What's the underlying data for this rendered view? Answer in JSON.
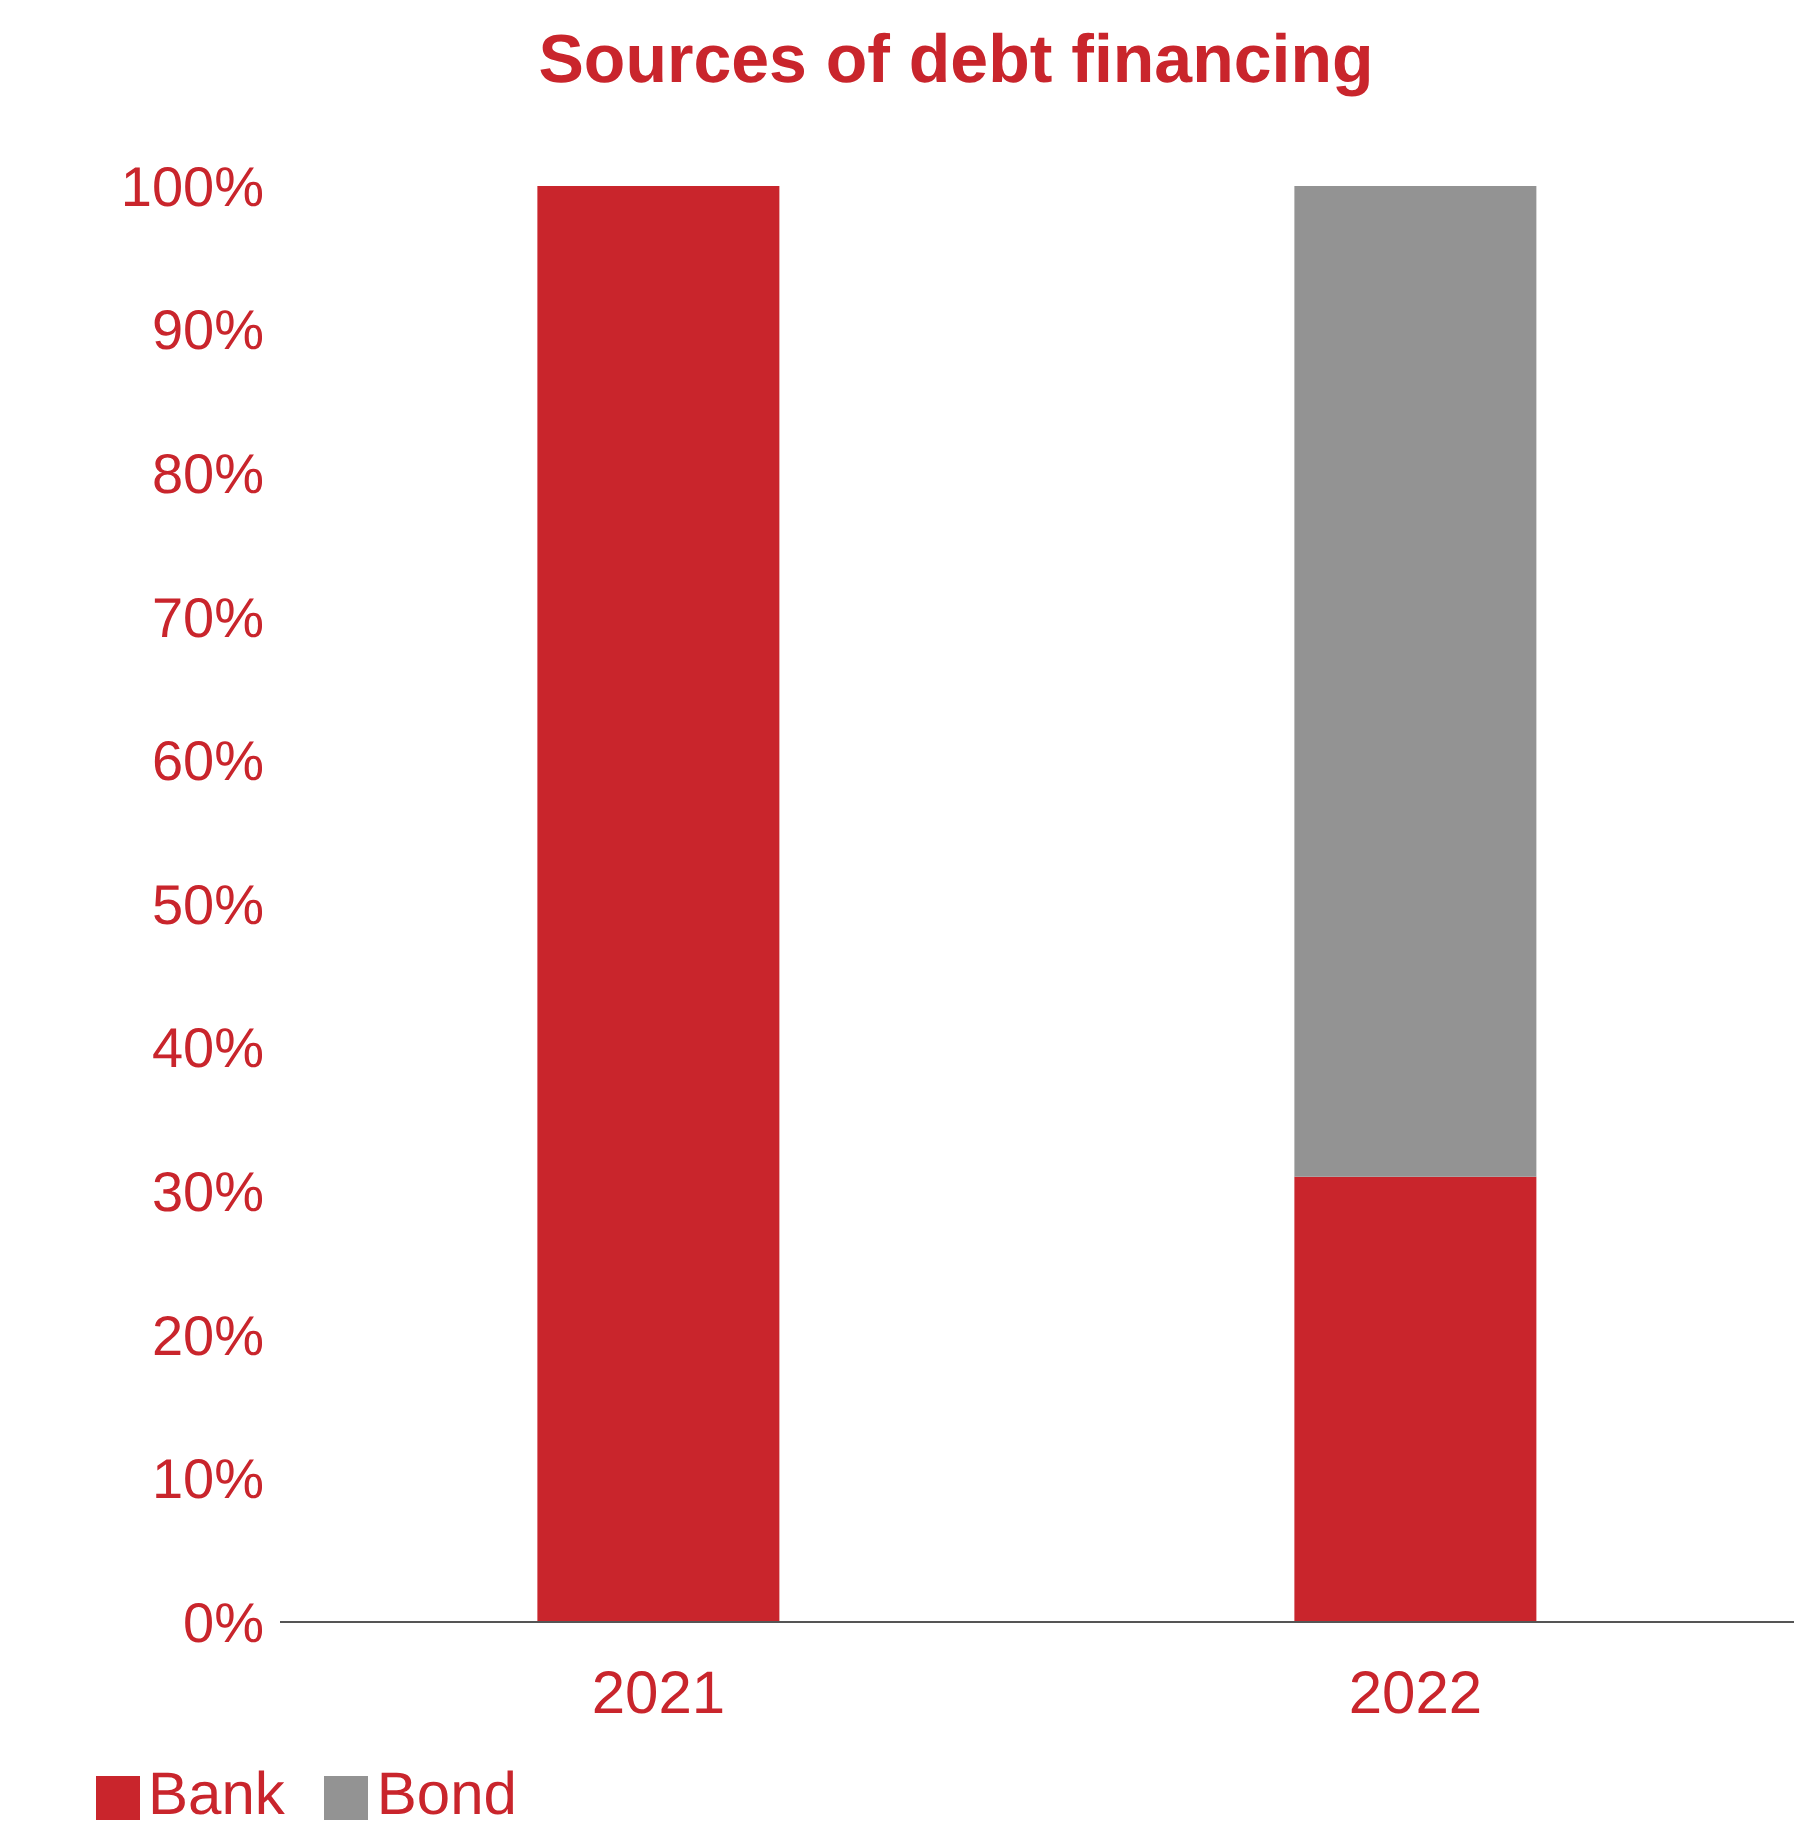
{
  "chart_data": {
    "type": "bar",
    "title": "Sources of debt financing",
    "categories": [
      "2021",
      "2022"
    ],
    "stacked": true,
    "series": [
      {
        "name": "Bank",
        "color": "#c9252c",
        "values": [
          100,
          31
        ]
      },
      {
        "name": "Bond",
        "color": "#939393",
        "values": [
          0,
          69
        ]
      }
    ],
    "ylim": [
      0,
      100
    ],
    "yticks": [
      {
        "value": 0,
        "label": "0%"
      },
      {
        "value": 10,
        "label": "10%"
      },
      {
        "value": 20,
        "label": "20%"
      },
      {
        "value": 30,
        "label": "30%"
      },
      {
        "value": 40,
        "label": "40%"
      },
      {
        "value": 50,
        "label": "50%"
      },
      {
        "value": 60,
        "label": "60%"
      },
      {
        "value": 70,
        "label": "70%"
      },
      {
        "value": 80,
        "label": "80%"
      },
      {
        "value": 90,
        "label": "90%"
      },
      {
        "value": 100,
        "label": "100%"
      }
    ],
    "grid": false,
    "legend": "bottom left"
  }
}
